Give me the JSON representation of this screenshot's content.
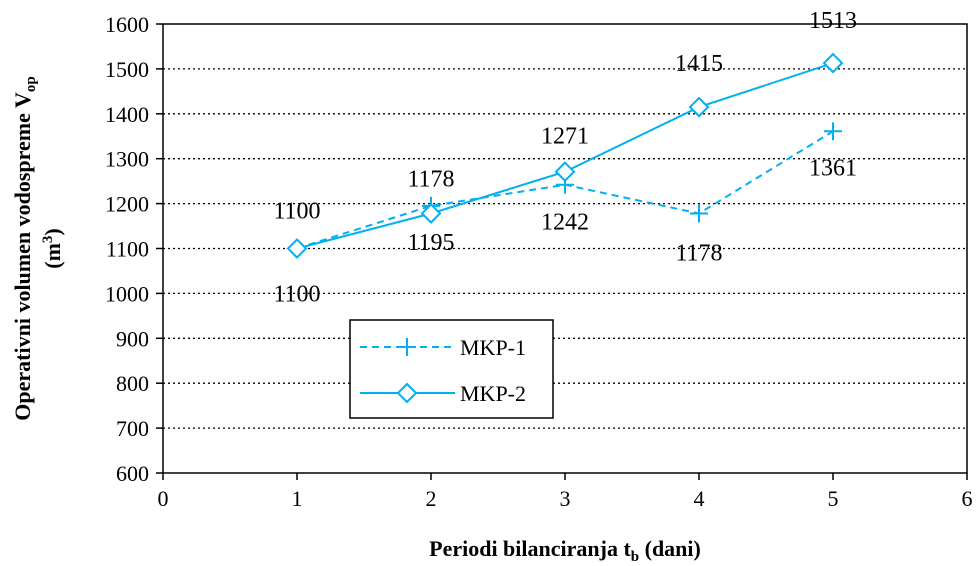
{
  "chart_data": {
    "type": "line",
    "xlabel": {
      "main": "Periodi bilanciranja t",
      "sub": "b",
      "suffix": " (dani)"
    },
    "ylabel": {
      "line1_main": "Operativni volumen vodospreme V",
      "line1_sub": "op",
      "line2_pre": "(m",
      "line2_sup": "3",
      "line2_post": ")"
    },
    "xlim": [
      0,
      6
    ],
    "ylim": [
      600,
      1600
    ],
    "xticks": [
      0,
      1,
      2,
      3,
      4,
      5,
      6
    ],
    "yticks": [
      600,
      700,
      800,
      900,
      1000,
      1100,
      1200,
      1300,
      1400,
      1500,
      1600
    ],
    "grid": "horizontal dotted",
    "legend_placement": "lower-center",
    "series": [
      {
        "name": "MKP-1",
        "color": "#00B0F0",
        "line_style": "dashed",
        "marker": "plus",
        "x": [
          1,
          2,
          3,
          4,
          5
        ],
        "y": [
          1100,
          1195,
          1242,
          1178,
          1361
        ],
        "labels": [
          "1100",
          "1195",
          "1242",
          "1178",
          "1361"
        ]
      },
      {
        "name": "MKP-2",
        "color": "#00B0F0",
        "line_style": "solid",
        "marker": "diamond",
        "x": [
          1,
          2,
          3,
          4,
          5
        ],
        "y": [
          1100,
          1178,
          1271,
          1415,
          1513
        ],
        "labels": [
          "1100",
          "1178",
          "1271",
          "1415",
          "1513"
        ]
      }
    ]
  }
}
